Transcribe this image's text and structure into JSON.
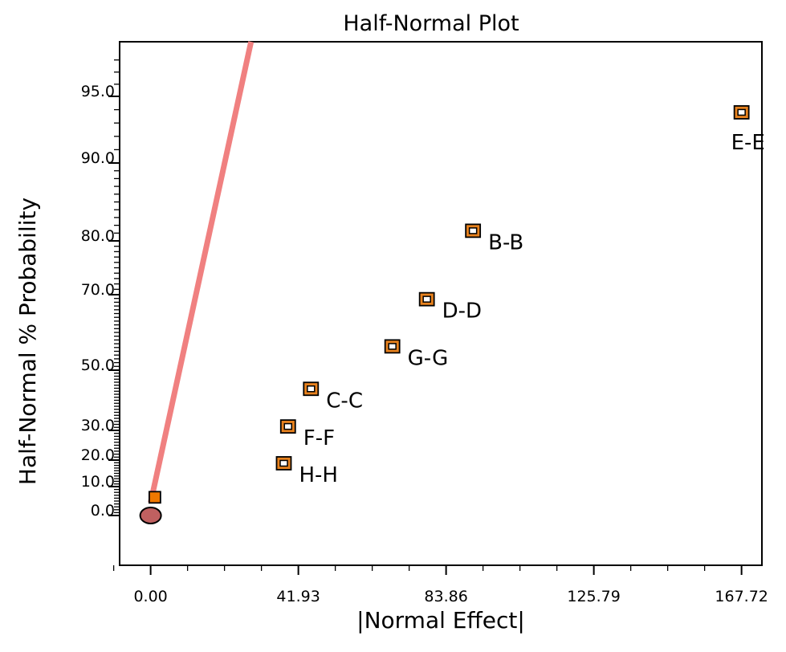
{
  "chart_data": {
    "type": "scatter",
    "title": "Half-Normal Plot",
    "xlabel": "|Normal Effect|",
    "ylabel": "Half-Normal % Probability",
    "xlim": [
      -8.8,
      173.5
    ],
    "x_ticks": [
      0.0,
      41.93,
      83.86,
      125.79,
      167.72
    ],
    "x_tick_labels": [
      "0.00",
      "41.93",
      "83.86",
      "125.79",
      "167.72"
    ],
    "y_ticks": [
      0,
      10,
      20,
      30,
      50,
      70,
      80,
      90,
      95
    ],
    "y_tick_labels": [
      "0.0",
      "10.0",
      "20.0",
      "30.0",
      "50.0",
      "70.0",
      "80.0",
      "90.0",
      "95.0"
    ],
    "grid": false,
    "reference_line": {
      "color": "#f08080",
      "from": [
        0,
        0
      ],
      "to": [
        28.5,
        99.5
      ]
    },
    "effects": [
      {
        "label": "E-E",
        "x": 167.72,
        "y": 93.8
      },
      {
        "label": "B-B",
        "x": 91.5,
        "y": 81.3
      },
      {
        "label": "D-D",
        "x": 78.4,
        "y": 68.8
      },
      {
        "label": "G-G",
        "x": 68.6,
        "y": 56.3
      },
      {
        "label": "C-C",
        "x": 45.5,
        "y": 43.8
      },
      {
        "label": "F-F",
        "x": 39.0,
        "y": 31.3
      },
      {
        "label": "H-H",
        "x": 37.8,
        "y": 18.8
      }
    ],
    "error_points": [
      {
        "x": 1.2,
        "y": 6.3
      }
    ],
    "zero_point": {
      "x": 0,
      "y": 0
    },
    "colors": {
      "effect_marker": "#e8821e",
      "error_marker": "#f07800",
      "zero_marker": "#c06060",
      "reference_line": "#f08080"
    }
  }
}
